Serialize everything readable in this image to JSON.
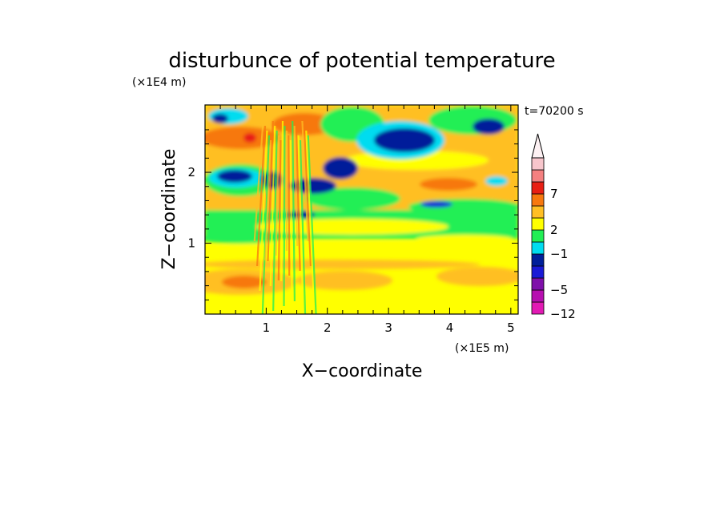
{
  "chart_data": {
    "type": "heatmap",
    "title": "disturbunce of potential temperature",
    "xlabel": "X−coordinate",
    "ylabel": "Z−coordinate",
    "x_unit": "(×1E5 m)",
    "y_unit": "(×1E4 m)",
    "time_label": "t=70200 s",
    "xlim": [
      0,
      5.12
    ],
    "ylim": [
      0,
      2.95
    ],
    "x_ticks": [
      {
        "value": 1,
        "label": "1"
      },
      {
        "value": 2,
        "label": "2"
      },
      {
        "value": 3,
        "label": "3"
      },
      {
        "value": 4,
        "label": "4"
      },
      {
        "value": 5,
        "label": "5"
      }
    ],
    "y_ticks": [
      {
        "value": 1,
        "label": "1"
      },
      {
        "value": 2,
        "label": "2"
      }
    ],
    "colorbar": {
      "levels": [
        {
          "color": "#e21ab4",
          "value_label": "−12"
        },
        {
          "color": "#b70fb0",
          "value_label": ""
        },
        {
          "color": "#7f10aa",
          "value_label": "−5"
        },
        {
          "color": "#1a1ad6",
          "value_label": ""
        },
        {
          "color": "#001f9a",
          "value_label": ""
        },
        {
          "color": "#00dcf0",
          "value_label": "−1"
        },
        {
          "color": "#22ef55",
          "value_label": ""
        },
        {
          "color": "#ffff00",
          "value_label": "2"
        },
        {
          "color": "#ffbf24",
          "value_label": ""
        },
        {
          "color": "#f7780e",
          "value_label": ""
        },
        {
          "color": "#e81f14",
          "value_label": "7"
        },
        {
          "color": "#f48080",
          "value_label": ""
        },
        {
          "color": "#f7c6cc",
          "value_label": ""
        }
      ],
      "overflow_arrow": "top",
      "tick_labels": [
        "−12",
        "−5",
        "−1",
        "2",
        "7"
      ]
    },
    "grid": false,
    "field_description_regions": [
      {
        "x": [
          0,
          5.12
        ],
        "z": [
          0,
          0.1
        ],
        "level": "yellow"
      },
      {
        "x": [
          0.1,
          1.3
        ],
        "z": [
          0.4,
          0.65
        ],
        "level": "orange"
      },
      {
        "x": [
          2.0,
          3.2
        ],
        "z": [
          0.4,
          0.6
        ],
        "level": "orange-light"
      },
      {
        "x": [
          3.8,
          4.7
        ],
        "z": [
          0.4,
          0.6
        ],
        "level": "orange-light"
      },
      {
        "x": [
          0,
          5.12
        ],
        "z": [
          0.9,
          1.35
        ],
        "level": "green"
      },
      {
        "x": [
          0.1,
          1.3
        ],
        "z": [
          1.85,
          2.1
        ],
        "level": "dark-blue"
      },
      {
        "x": [
          2.8,
          3.6
        ],
        "z": [
          2.25,
          2.6
        ],
        "level": "dark-blue"
      },
      {
        "x": [
          1.4,
          1.7
        ],
        "z": [
          1.38,
          1.48
        ],
        "level": "dark-blue"
      },
      {
        "x": [
          0.4,
          1.0
        ],
        "z": [
          2.3,
          2.6
        ],
        "level": "orange"
      },
      {
        "x": [
          3.5,
          4.5
        ],
        "z": [
          1.75,
          1.95
        ],
        "level": "orange"
      }
    ]
  }
}
